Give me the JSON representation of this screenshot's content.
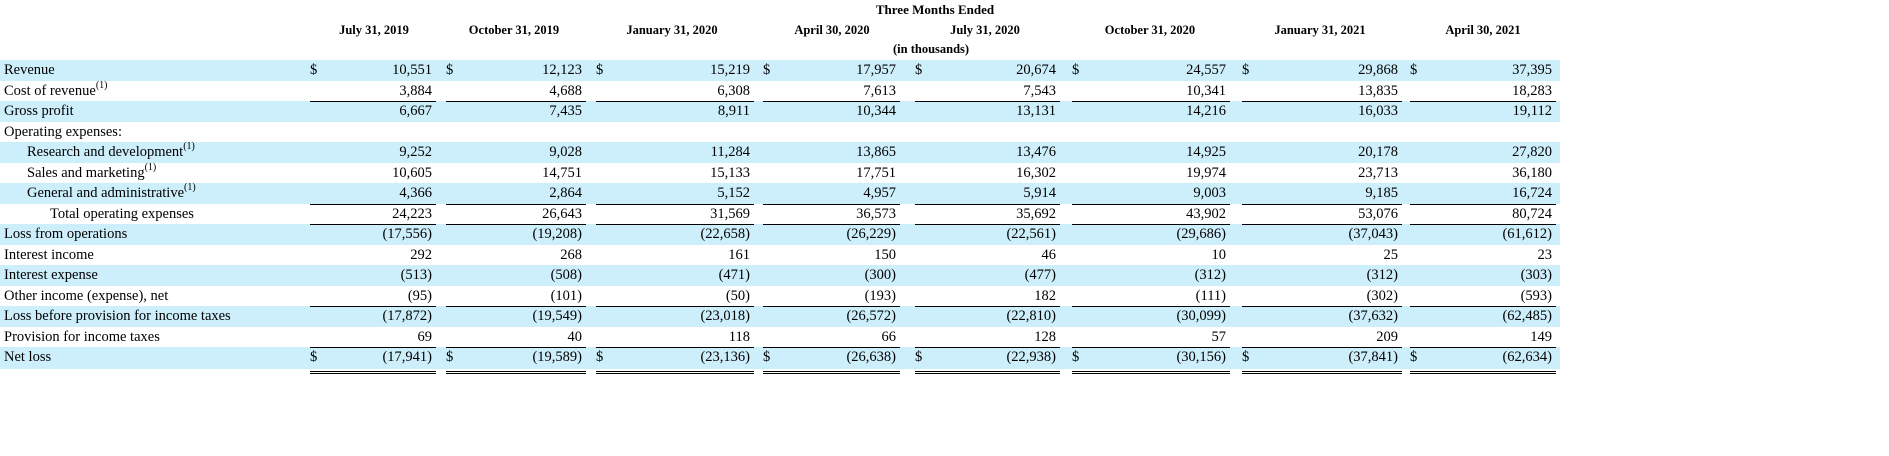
{
  "caption": "Three Months Ended",
  "unit_note": "(in thousands)",
  "columns": [
    "July 31, 2019",
    "October 31, 2019",
    "January 31, 2020",
    "April 30, 2020",
    "July 31, 2020",
    "October 31, 2020",
    "January 31, 2021",
    "April 30, 2021"
  ],
  "currency_symbol": "$",
  "rows": [
    {
      "label": "Revenue",
      "sup": "",
      "indent": 0,
      "shade": true,
      "dollar": true,
      "rule": "",
      "values": [
        "10,551",
        "12,123",
        "15,219",
        "17,957",
        "20,674",
        "24,557",
        "29,868",
        "37,395"
      ]
    },
    {
      "label": "Cost of revenue",
      "sup": "(1)",
      "indent": 0,
      "shade": false,
      "dollar": false,
      "rule": "",
      "values": [
        "3,884",
        "4,688",
        "6,308",
        "7,613",
        "7,543",
        "10,341",
        "13,835",
        "18,283"
      ]
    },
    {
      "label": "Gross profit",
      "sup": "",
      "indent": 0,
      "shade": true,
      "dollar": false,
      "rule": "top",
      "values": [
        "6,667",
        "7,435",
        "8,911",
        "10,344",
        "13,131",
        "14,216",
        "16,033",
        "19,112"
      ]
    },
    {
      "label": "Operating expenses:",
      "sup": "",
      "indent": 0,
      "shade": false,
      "dollar": false,
      "rule": "",
      "values": [
        "",
        "",
        "",
        "",
        "",
        "",
        "",
        ""
      ]
    },
    {
      "label": "Research and development",
      "sup": "(1)",
      "indent": 1,
      "shade": true,
      "dollar": false,
      "rule": "",
      "values": [
        "9,252",
        "9,028",
        "11,284",
        "13,865",
        "13,476",
        "14,925",
        "20,178",
        "27,820"
      ]
    },
    {
      "label": "Sales and marketing",
      "sup": "(1)",
      "indent": 1,
      "shade": false,
      "dollar": false,
      "rule": "",
      "values": [
        "10,605",
        "14,751",
        "15,133",
        "17,751",
        "16,302",
        "19,974",
        "23,713",
        "36,180"
      ]
    },
    {
      "label": "General and administrative",
      "sup": "(1)",
      "indent": 1,
      "shade": true,
      "dollar": false,
      "rule": "",
      "values": [
        "4,366",
        "2,864",
        "5,152",
        "4,957",
        "5,914",
        "9,003",
        "9,185",
        "16,724"
      ]
    },
    {
      "label": "Total operating expenses",
      "sup": "",
      "indent": 2,
      "shade": false,
      "dollar": false,
      "rule": "top",
      "values": [
        "24,223",
        "26,643",
        "31,569",
        "36,573",
        "35,692",
        "43,902",
        "53,076",
        "80,724"
      ]
    },
    {
      "label": "Loss from operations",
      "sup": "",
      "indent": 0,
      "shade": true,
      "dollar": false,
      "rule": "top",
      "values": [
        "(17,556)",
        "(19,208)",
        "(22,658)",
        "(26,229)",
        "(22,561)",
        "(29,686)",
        "(37,043)",
        "(61,612)"
      ]
    },
    {
      "label": "Interest income",
      "sup": "",
      "indent": 0,
      "shade": false,
      "dollar": false,
      "rule": "",
      "values": [
        "292",
        "268",
        "161",
        "150",
        "46",
        "10",
        "25",
        "23"
      ]
    },
    {
      "label": "Interest expense",
      "sup": "",
      "indent": 0,
      "shade": true,
      "dollar": false,
      "rule": "",
      "values": [
        "(513)",
        "(508)",
        "(471)",
        "(300)",
        "(477)",
        "(312)",
        "(312)",
        "(303)"
      ]
    },
    {
      "label": "Other income (expense), net",
      "sup": "",
      "indent": 0,
      "shade": false,
      "dollar": false,
      "rule": "",
      "values": [
        "(95)",
        "(101)",
        "(50)",
        "(193)",
        "182",
        "(111)",
        "(302)",
        "(593)"
      ]
    },
    {
      "label": "Loss before provision for income taxes",
      "sup": "",
      "indent": 0,
      "shade": true,
      "dollar": false,
      "rule": "top",
      "values": [
        "(17,872)",
        "(19,549)",
        "(23,018)",
        "(26,572)",
        "(22,810)",
        "(30,099)",
        "(37,632)",
        "(62,485)"
      ]
    },
    {
      "label": "Provision for income taxes",
      "sup": "",
      "indent": 0,
      "shade": false,
      "dollar": false,
      "rule": "",
      "values": [
        "69",
        "40",
        "118",
        "66",
        "128",
        "57",
        "209",
        "149"
      ]
    },
    {
      "label": "Net loss",
      "sup": "",
      "indent": 0,
      "shade": true,
      "dollar": true,
      "rule": "top-dbl",
      "values": [
        "(17,941)",
        "(19,589)",
        "(23,136)",
        "(26,638)",
        "(22,938)",
        "(30,156)",
        "(37,841)",
        "(62,634)"
      ]
    }
  ]
}
